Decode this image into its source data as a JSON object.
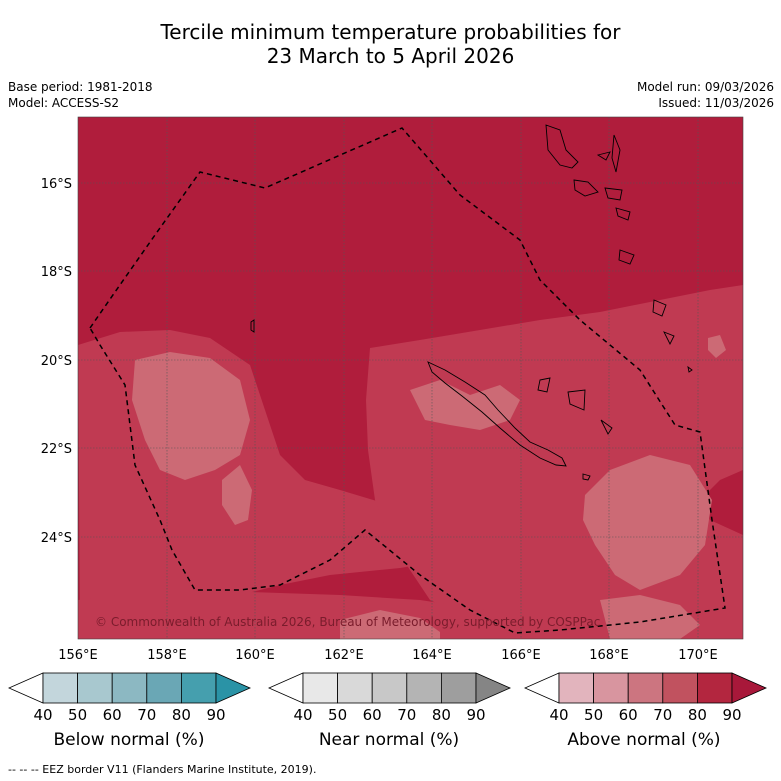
{
  "title_line1": "Tercile minimum temperature probabilities for",
  "title_line2": "23 March to 5 April 2026",
  "base_period": "Base period: 1981-2018",
  "model": "Model: ACCESS-S2",
  "model_run": "Model run: 09/03/2026",
  "issued": "Issued: 11/03/2026",
  "copyright": "© Commonwealth of Australia 2026, Bureau of Meteorology, supported by COSPPac",
  "lat_labels": [
    "16°S",
    "18°S",
    "20°S",
    "22°S",
    "24°S"
  ],
  "lon_labels": [
    "156°E",
    "158°E",
    "160°E",
    "162°E",
    "164°E",
    "166°E",
    "168°E",
    "170°E"
  ],
  "colorbars": [
    {
      "name": "Below normal (%)",
      "ticks": [
        "40",
        "50",
        "60",
        "70",
        "80",
        "90"
      ],
      "colors": [
        "#ffffff",
        "#c3d6dc",
        "#a8c8cf",
        "#8cb8c2",
        "#6aa7b5",
        "#459fae",
        "#2a93a6"
      ]
    },
    {
      "name": "Near normal (%)",
      "ticks": [
        "40",
        "50",
        "60",
        "70",
        "80",
        "90"
      ],
      "colors": [
        "#ffffff",
        "#e8e8e8",
        "#d9d9d9",
        "#c8c8c8",
        "#b4b4b4",
        "#9e9e9e",
        "#858585"
      ]
    },
    {
      "name": "Above normal (%)",
      "ticks": [
        "40",
        "50",
        "60",
        "70",
        "80",
        "90"
      ],
      "colors": [
        "#ffffff",
        "#e2b4bd",
        "#d8959f",
        "#cc7580",
        "#c1525f",
        "#b3263f",
        "#a8183a"
      ]
    }
  ],
  "footer": "--  --  -- EEZ border V11 (Flanders Marine Institute, 2019).",
  "colors": {
    "above80": "#b01d3c",
    "above70": "#c03a52",
    "above60": "#cc6a75"
  }
}
